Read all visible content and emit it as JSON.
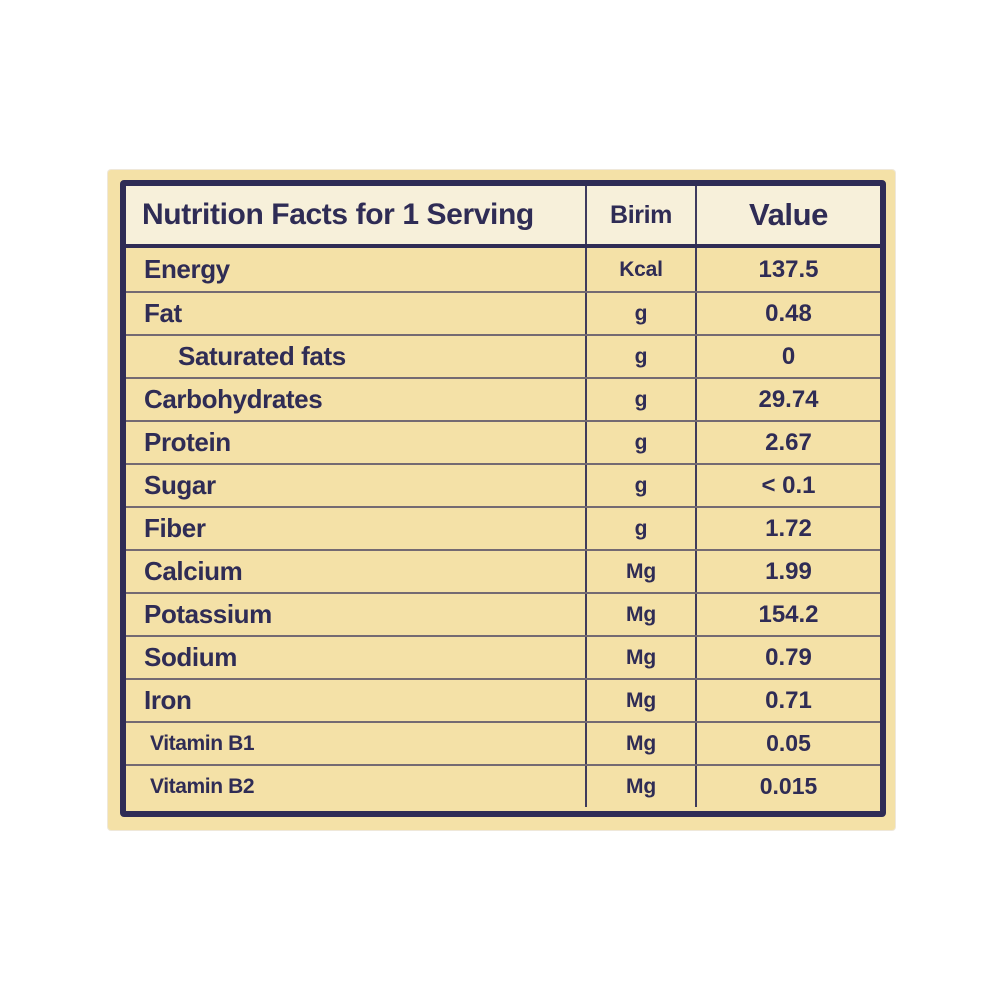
{
  "table": {
    "title": "Nutrition Facts for 1 Serving",
    "columns": {
      "unit": "Birim",
      "value": "Value"
    },
    "rows": [
      {
        "label": "Energy",
        "unit": "Kcal",
        "value": "137.5",
        "indent": false,
        "small": false
      },
      {
        "label": "Fat",
        "unit": "g",
        "value": "0.48",
        "indent": false,
        "small": false
      },
      {
        "label": "Saturated fats",
        "unit": "g",
        "value": "0",
        "indent": true,
        "small": false
      },
      {
        "label": "Carbohydrates",
        "unit": "g",
        "value": "29.74",
        "indent": false,
        "small": false
      },
      {
        "label": "Protein",
        "unit": "g",
        "value": "2.67",
        "indent": false,
        "small": false
      },
      {
        "label": "Sugar",
        "unit": "g",
        "value": "< 0.1",
        "indent": false,
        "small": false
      },
      {
        "label": "Fiber",
        "unit": "g",
        "value": "1.72",
        "indent": false,
        "small": false
      },
      {
        "label": "Calcium",
        "unit": "Mg",
        "value": "1.99",
        "indent": false,
        "small": false
      },
      {
        "label": "Potassium",
        "unit": "Mg",
        "value": "154.2",
        "indent": false,
        "small": false
      },
      {
        "label": "Sodium",
        "unit": "Mg",
        "value": "0.79",
        "indent": false,
        "small": false
      },
      {
        "label": "Iron",
        "unit": "Mg",
        "value": "0.71",
        "indent": false,
        "small": false
      },
      {
        "label": "Vitamin B1",
        "unit": "Mg",
        "value": "0.05",
        "indent": false,
        "small": true
      },
      {
        "label": "Vitamin B2",
        "unit": "Mg",
        "value": "0.015",
        "indent": false,
        "small": true
      }
    ],
    "colors": {
      "page_bg": "#ffffff",
      "card_bg": "#f4e1a7",
      "header_bg": "#f7f0da",
      "navy": "#2f2c55"
    }
  }
}
